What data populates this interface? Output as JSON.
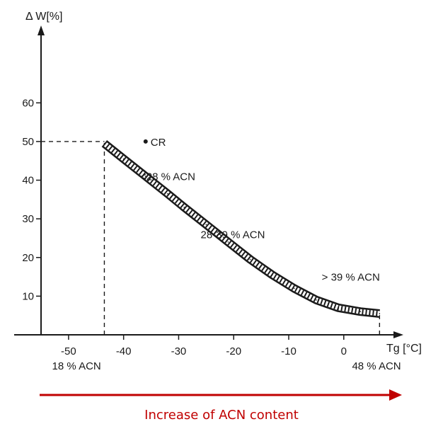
{
  "chart_data": {
    "type": "line",
    "title": "",
    "ylabel": "Δ W[%]",
    "xlabel": "Tg [°C]",
    "xlim": [
      -55,
      8
    ],
    "ylim": [
      0,
      65
    ],
    "x_ticks": [
      -50,
      -40,
      -30,
      -20,
      -10,
      0
    ],
    "x_tick_labels": [
      "-50",
      "-40",
      "-30",
      "-20",
      "-10",
      "0"
    ],
    "y_ticks": [
      10,
      20,
      30,
      40,
      50,
      60
    ],
    "y_tick_labels": [
      "10",
      "20",
      "30",
      "40",
      "50",
      "60"
    ],
    "grid": false,
    "series": [
      {
        "x": [
          -43.5,
          -40,
          -36,
          -32,
          -29,
          -25,
          -21,
          -17,
          -13,
          -9,
          -5,
          -1,
          3,
          6.5
        ],
        "y": [
          49.5,
          45.5,
          41,
          36.5,
          33,
          28.5,
          24,
          19.5,
          15.5,
          12,
          9,
          7,
          6,
          5.5
        ]
      }
    ],
    "points": [
      {
        "label": "CR",
        "x": -36,
        "y": 50
      }
    ],
    "reference_lines": [
      {
        "from": [
          -55,
          50
        ],
        "to": [
          -43.5,
          50
        ]
      },
      {
        "from": [
          -43.5,
          0
        ],
        "to": [
          -43.5,
          50
        ]
      },
      {
        "from": [
          6.5,
          0
        ],
        "to": [
          6.5,
          5.5
        ]
      }
    ],
    "annotations": [
      {
        "text": "<28 % ACN",
        "x": -37,
        "y": 40
      },
      {
        "text": "28-39 % ACN",
        "x": -26,
        "y": 25
      },
      {
        "text": "> 39 % ACN",
        "x": -4,
        "y": 14
      },
      {
        "text": "18 % ACN",
        "x": -53,
        "y": -9
      },
      {
        "text": "48 % ACN",
        "x": 1.5,
        "y": -9
      }
    ]
  },
  "caption": {
    "text": "Increase of ACN content",
    "color": "#c00000"
  }
}
